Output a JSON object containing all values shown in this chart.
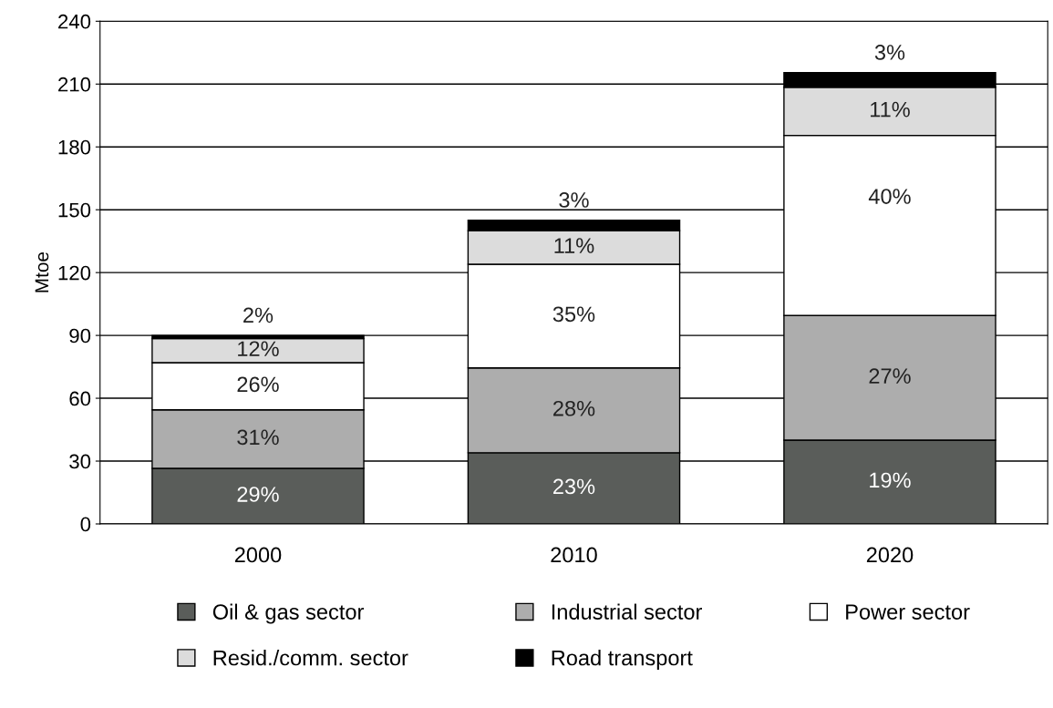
{
  "chart_data": {
    "type": "bar",
    "stacked": true,
    "ylabel": "Mtoe",
    "categories": [
      "2000",
      "2010",
      "2020"
    ],
    "series": [
      {
        "name": "Oil & gas sector",
        "color": "#5a5d5a",
        "values": [
          26.5,
          34,
          40
        ]
      },
      {
        "name": "Industrial sector",
        "color": "#adadad",
        "values": [
          28,
          40.5,
          59.5
        ]
      },
      {
        "name": "Power sector",
        "color": "#ffffff",
        "values": [
          22.5,
          49.5,
          86
        ]
      },
      {
        "name": "Resid./comm. sector",
        "color": "#dcdcdc",
        "values": [
          11.5,
          16,
          23
        ]
      },
      {
        "name": "Road transport",
        "color": "#000000",
        "values": [
          1.5,
          5,
          7
        ]
      }
    ],
    "annotations": [
      {
        "text": "29%",
        "x": "2000",
        "y": 26.5
      },
      {
        "text": "31%",
        "x": "2000",
        "y": 54.5
      },
      {
        "text": "26%",
        "x": "2000",
        "y": 77
      },
      {
        "text": "12%",
        "x": "2000",
        "y": 88.5
      },
      {
        "text": "2%",
        "x": "2000",
        "y": 90
      },
      {
        "text": "23%",
        "x": "2010",
        "y": 34
      },
      {
        "text": "28%",
        "x": "2010",
        "y": 74.5
      },
      {
        "text": "35%",
        "x": "2010",
        "y": 124
      },
      {
        "text": "11%",
        "x": "2010",
        "y": 140
      },
      {
        "text": "3%",
        "x": "2010",
        "y": 145
      },
      {
        "text": "19%",
        "x": "2020",
        "y": 40
      },
      {
        "text": "27%",
        "x": "2020",
        "y": 99.5
      },
      {
        "text": "40%",
        "x": "2020",
        "y": 185.5
      },
      {
        "text": "11%",
        "x": "2020",
        "y": 208.5
      },
      {
        "text": "3%",
        "x": "2020",
        "y": 215.5
      }
    ],
    "ylim": [
      0,
      240
    ],
    "yticks": [
      0,
      30,
      60,
      90,
      120,
      150,
      180,
      210,
      240
    ],
    "grid": "y",
    "legend": "bottom"
  }
}
